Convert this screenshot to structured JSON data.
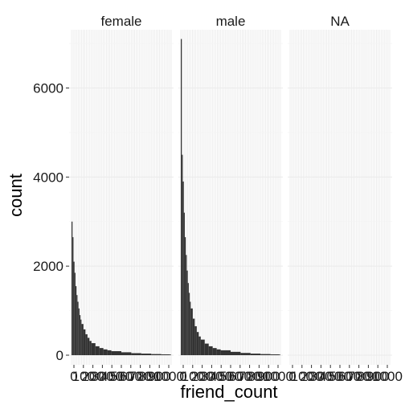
{
  "chart_data": {
    "type": "bar",
    "facets": [
      "female",
      "male",
      "NA"
    ],
    "xlabel": "friend_count",
    "ylabel": "count",
    "ylim": [
      0,
      7200
    ],
    "y_ticks": [
      0,
      2000,
      4000,
      6000
    ],
    "y_tick_labels": [
      "0",
      "2000",
      "4000",
      "6000"
    ],
    "xlim": [
      0,
      5000
    ],
    "x_tick_labels": [
      "0",
      "100",
      "200",
      "300",
      "400",
      "500",
      "600",
      "700",
      "800",
      "900",
      "1000"
    ],
    "grid": true,
    "legend": "none",
    "bar_color": "#333333",
    "series": [
      {
        "name": "female",
        "x": [
          0,
          50,
          100,
          150,
          200,
          250,
          300,
          350,
          400,
          450,
          500,
          600,
          700,
          800,
          900,
          1000,
          1200,
          1400,
          1600,
          1800,
          2000,
          2500,
          3000,
          3500,
          4000,
          4500,
          4950
        ],
        "values": [
          3000,
          2650,
          2100,
          1850,
          1550,
          1350,
          1200,
          1050,
          900,
          800,
          700,
          580,
          470,
          390,
          320,
          270,
          200,
          160,
          130,
          110,
          90,
          65,
          45,
          35,
          25,
          18,
          12
        ]
      },
      {
        "name": "male",
        "x": [
          0,
          50,
          100,
          150,
          200,
          250,
          300,
          350,
          400,
          450,
          500,
          600,
          700,
          800,
          900,
          1000,
          1200,
          1400,
          1600,
          1800,
          2000,
          2500,
          3000,
          3500,
          4000,
          4500,
          4950
        ],
        "values": [
          7100,
          4500,
          3900,
          3200,
          2650,
          2250,
          1900,
          1620,
          1400,
          1200,
          1050,
          820,
          650,
          520,
          420,
          350,
          260,
          200,
          160,
          130,
          110,
          75,
          50,
          35,
          25,
          18,
          12
        ]
      },
      {
        "name": "NA",
        "x": [],
        "values": []
      }
    ]
  }
}
